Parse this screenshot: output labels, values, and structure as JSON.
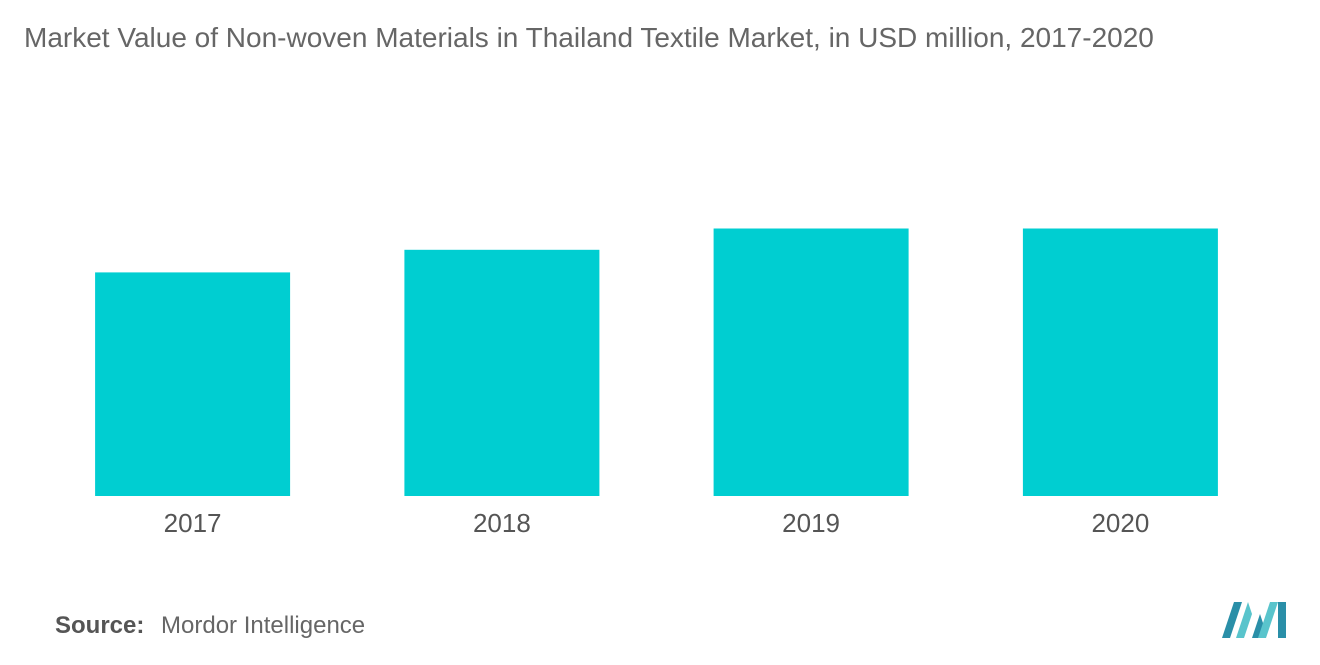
{
  "chart_data": {
    "type": "bar",
    "title": "Market Value of Non-woven Materials in Thailand Textile Market, in USD million, 2017-2020",
    "categories": [
      "2017",
      "2018",
      "2019",
      "2020"
    ],
    "values": [
      84,
      92.5,
      100.5,
      100.5
    ],
    "xlabel": "",
    "ylabel": "",
    "ylim": [
      0,
      130
    ],
    "grid": false,
    "legend": "none",
    "bar_color": "#00CED1"
  },
  "source": {
    "label": "Source:",
    "value": "Mordor Intelligence"
  },
  "colors": {
    "title": "#666666",
    "tick_label": "#555555",
    "logo_dark": "#2A8FA8",
    "logo_light": "#59C4CC"
  }
}
